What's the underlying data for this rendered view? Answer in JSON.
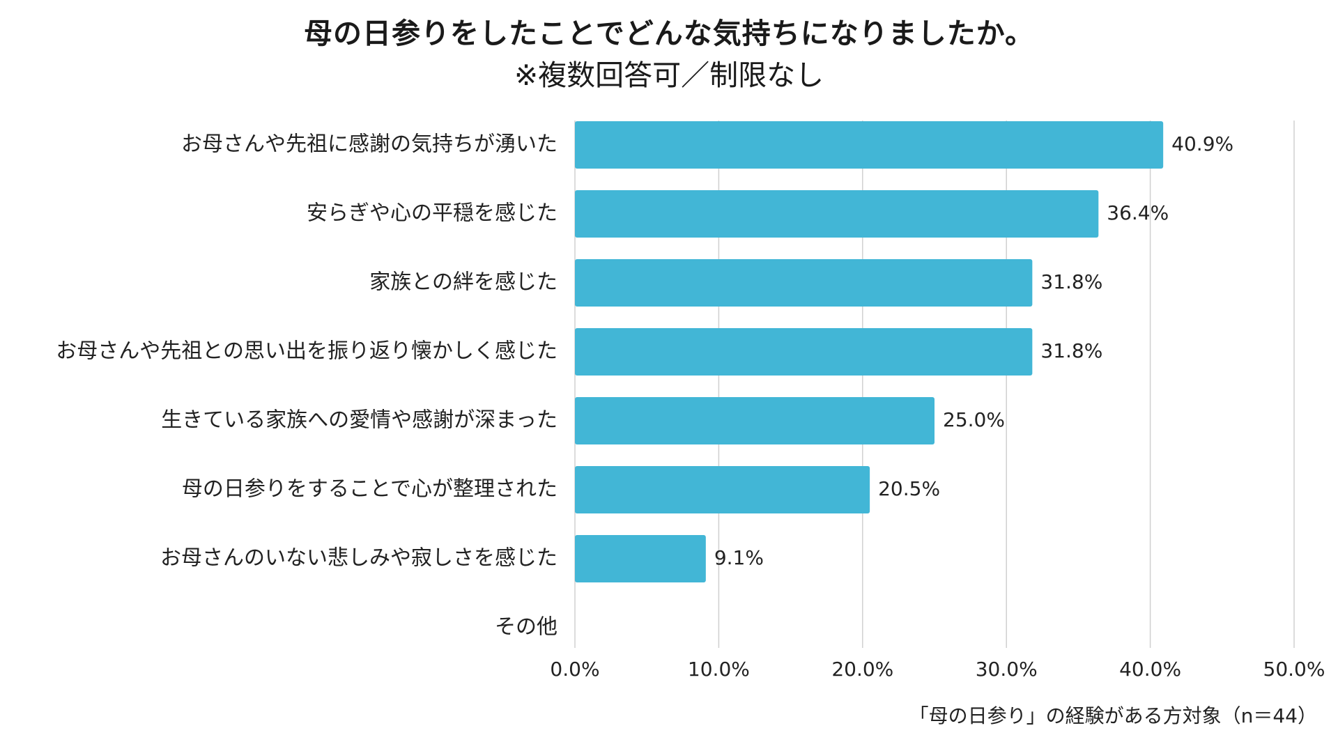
{
  "title": "母の日参りをしたことでどんな気持ちになりましたか。",
  "subtitle": "※複数回答可／制限なし",
  "footnote": "「母の日参り」の経験がある方対象（n＝44）",
  "colors": {
    "bar": "#42B6D6",
    "grid": "#d0d0d0"
  },
  "chart_data": {
    "type": "bar",
    "orientation": "horizontal",
    "categories": [
      "お母さんや先祖に感謝の気持ちが湧いた",
      "安らぎや心の平穏を感じた",
      "家族との絆を感じた",
      "お母さんや先祖との思い出を振り返り懐かしく感じた",
      "生きている家族への愛情や感謝が深まった",
      "母の日参りをすることで心が整理された",
      "お母さんのいない悲しみや寂しさを感じた",
      "その他"
    ],
    "values": [
      40.9,
      36.4,
      31.8,
      31.8,
      25.0,
      20.5,
      9.1,
      0
    ],
    "value_labels": [
      "40.9%",
      "36.4%",
      "31.8%",
      "31.8%",
      "25.0%",
      "20.5%",
      "9.1%",
      ""
    ],
    "xlim": [
      0,
      50
    ],
    "xticks": [
      0,
      10,
      20,
      30,
      40,
      50
    ],
    "xtick_labels": [
      "0.0%",
      "10.0%",
      "20.0%",
      "30.0%",
      "40.0%",
      "50.0%"
    ],
    "grid": true,
    "legend": "none"
  }
}
